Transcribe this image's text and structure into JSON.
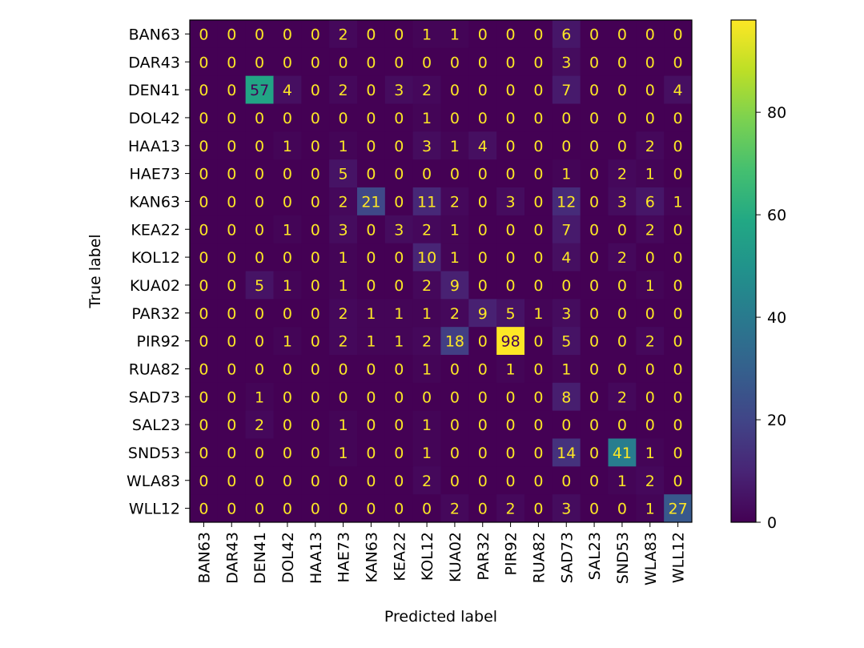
{
  "chart_data": {
    "type": "heatmap",
    "title": "",
    "xlabel": "Predicted label",
    "ylabel": "True label",
    "x_categories": [
      "BAN63",
      "DAR43",
      "DEN41",
      "DOL42",
      "HAA13",
      "HAE73",
      "KAN63",
      "KEA22",
      "KOL12",
      "KUA02",
      "PAR32",
      "PIR92",
      "RUA82",
      "SAD73",
      "SAL23",
      "SND53",
      "WLA83",
      "WLL12"
    ],
    "y_categories": [
      "BAN63",
      "DAR43",
      "DEN41",
      "DOL42",
      "HAA13",
      "HAE73",
      "KAN63",
      "KEA22",
      "KOL12",
      "KUA02",
      "PAR32",
      "PIR92",
      "RUA82",
      "SAD73",
      "SAL23",
      "SND53",
      "WLA83",
      "WLL12"
    ],
    "values": [
      [
        0,
        0,
        0,
        0,
        0,
        2,
        0,
        0,
        1,
        1,
        0,
        0,
        0,
        6,
        0,
        0,
        0,
        0
      ],
      [
        0,
        0,
        0,
        0,
        0,
        0,
        0,
        0,
        0,
        0,
        0,
        0,
        0,
        3,
        0,
        0,
        0,
        0
      ],
      [
        0,
        0,
        57,
        4,
        0,
        2,
        0,
        3,
        2,
        0,
        0,
        0,
        0,
        7,
        0,
        0,
        0,
        4
      ],
      [
        0,
        0,
        0,
        0,
        0,
        0,
        0,
        0,
        1,
        0,
        0,
        0,
        0,
        0,
        0,
        0,
        0,
        0
      ],
      [
        0,
        0,
        0,
        1,
        0,
        1,
        0,
        0,
        3,
        1,
        4,
        0,
        0,
        0,
        0,
        0,
        2,
        0
      ],
      [
        0,
        0,
        0,
        0,
        0,
        5,
        0,
        0,
        0,
        0,
        0,
        0,
        0,
        1,
        0,
        2,
        1,
        0
      ],
      [
        0,
        0,
        0,
        0,
        0,
        2,
        21,
        0,
        11,
        2,
        0,
        3,
        0,
        12,
        0,
        3,
        6,
        1
      ],
      [
        0,
        0,
        0,
        1,
        0,
        3,
        0,
        3,
        2,
        1,
        0,
        0,
        0,
        7,
        0,
        0,
        2,
        0
      ],
      [
        0,
        0,
        0,
        0,
        0,
        1,
        0,
        0,
        10,
        1,
        0,
        0,
        0,
        4,
        0,
        2,
        0,
        0
      ],
      [
        0,
        0,
        5,
        1,
        0,
        1,
        0,
        0,
        2,
        9,
        0,
        0,
        0,
        0,
        0,
        0,
        1,
        0
      ],
      [
        0,
        0,
        0,
        0,
        0,
        2,
        1,
        1,
        1,
        2,
        9,
        5,
        1,
        3,
        0,
        0,
        0,
        0
      ],
      [
        0,
        0,
        0,
        1,
        0,
        2,
        1,
        1,
        2,
        18,
        0,
        98,
        0,
        5,
        0,
        0,
        2,
        0
      ],
      [
        0,
        0,
        0,
        0,
        0,
        0,
        0,
        0,
        1,
        0,
        0,
        1,
        0,
        1,
        0,
        0,
        0,
        0
      ],
      [
        0,
        0,
        1,
        0,
        0,
        0,
        0,
        0,
        0,
        0,
        0,
        0,
        0,
        8,
        0,
        2,
        0,
        0
      ],
      [
        0,
        0,
        2,
        0,
        0,
        1,
        0,
        0,
        1,
        0,
        0,
        0,
        0,
        0,
        0,
        0,
        0,
        0
      ],
      [
        0,
        0,
        0,
        0,
        0,
        1,
        0,
        0,
        1,
        0,
        0,
        0,
        0,
        14,
        0,
        41,
        1,
        0
      ],
      [
        0,
        0,
        0,
        0,
        0,
        0,
        0,
        0,
        2,
        0,
        0,
        0,
        0,
        0,
        0,
        1,
        2,
        0
      ],
      [
        0,
        0,
        0,
        0,
        0,
        0,
        0,
        0,
        0,
        2,
        0,
        2,
        0,
        3,
        0,
        0,
        1,
        27
      ]
    ],
    "vmin": 0,
    "vmax": 98,
    "colormap": "viridis",
    "grid": false,
    "legend": "colorbar right",
    "colorbar_ticks": [
      0,
      20,
      40,
      60,
      80
    ]
  }
}
